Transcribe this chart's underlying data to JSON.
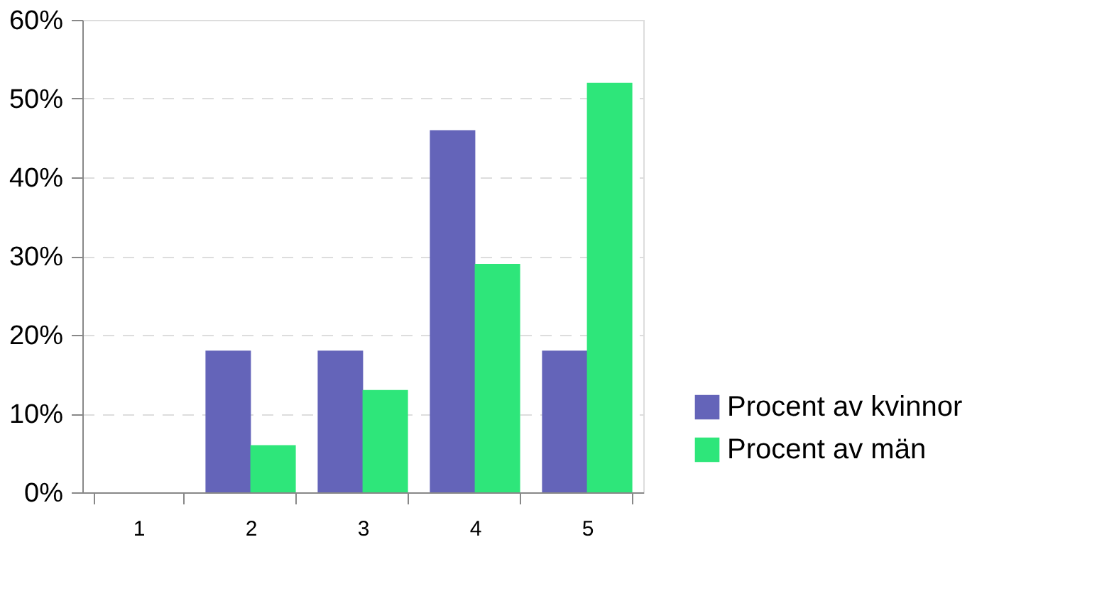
{
  "chart_data": {
    "type": "bar",
    "categories": [
      "1",
      "2",
      "3",
      "4",
      "5"
    ],
    "series": [
      {
        "name": "Procent av kvinnor",
        "color": "#6464b9",
        "values": [
          0,
          18,
          18,
          46,
          18
        ]
      },
      {
        "name": "Procent av män",
        "color": "#2ee67a",
        "values": [
          0,
          6,
          13,
          29,
          52
        ]
      }
    ],
    "ylim": [
      0,
      60
    ],
    "yticks": [
      {
        "value": 0,
        "label": "0%"
      },
      {
        "value": 10,
        "label": "10%"
      },
      {
        "value": 20,
        "label": "20%"
      },
      {
        "value": 30,
        "label": "30%"
      },
      {
        "value": 40,
        "label": "40%"
      },
      {
        "value": 50,
        "label": "50%"
      },
      {
        "value": 60,
        "label": "60%"
      }
    ],
    "grid": "y",
    "legend": "bottom right"
  }
}
